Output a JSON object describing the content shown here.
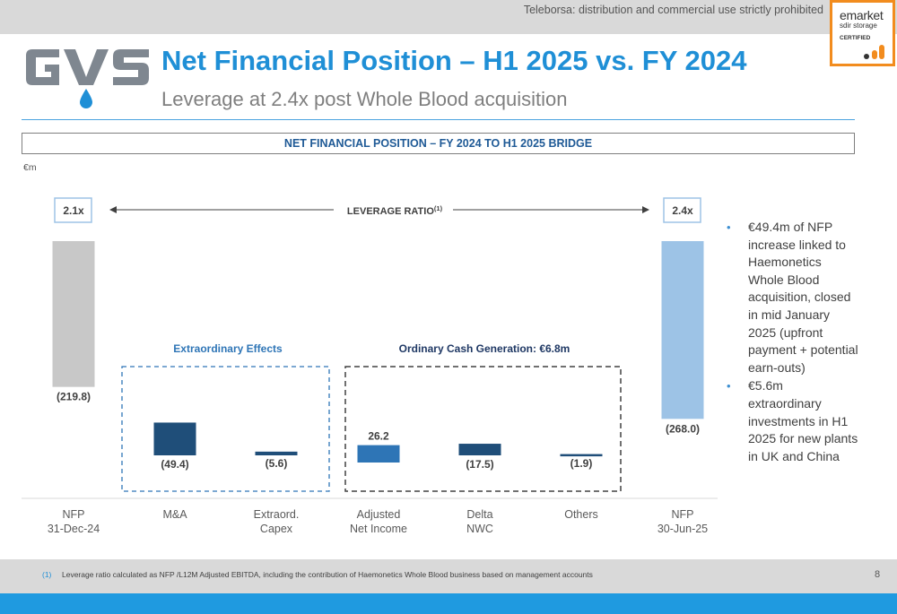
{
  "header": {
    "notice": "Teleborsa: distribution and commercial use strictly prohibited",
    "badge": {
      "line1": "emarket",
      "line2": "sdir storage",
      "line3": "CERTIFIED"
    },
    "logo_text": "GVS",
    "title": "Net Financial Position – H1 2025 vs. FY 2024",
    "subtitle": "Leverage at 2.4x post Whole Blood acquisition"
  },
  "bridge_title": "NET FINANCIAL POSITION –  FY 2024 TO H1 2025 BRIDGE",
  "unit": "€m",
  "chart_data": {
    "type": "bar",
    "subtype": "waterfall",
    "categories": [
      "NFP\n31-Dec-24",
      "M&A",
      "Extraord.\nCapex",
      "Adjusted\nNet Income",
      "Delta\nNWC",
      "Others",
      "NFP\n30-Jun-25"
    ],
    "values": [
      -219.8,
      -49.4,
      -5.6,
      26.2,
      -17.5,
      -1.9,
      -268.0
    ],
    "data_labels": [
      "(219.8)",
      "(49.4)",
      "(5.6)",
      "26.2",
      "(17.5)",
      "(1.9)",
      "(268.0)"
    ],
    "kinds": [
      "total",
      "delta",
      "delta",
      "delta",
      "delta",
      "delta",
      "total"
    ],
    "colors": [
      "#c8c8c8",
      "#1f4e79",
      "#1f4e79",
      "#2e75b6",
      "#1f4e79",
      "#1f4e79",
      "#9dc3e6"
    ],
    "leverage": {
      "start": "2.1x",
      "end": "2.4x",
      "label": "LEVERAGE RATIO",
      "footnote_marker": "(1)"
    },
    "groups": [
      {
        "label": "Extraordinary Effects",
        "color": "#2e75b6"
      },
      {
        "label": "Ordinary Cash Generation: €6.8m",
        "color": "#1f3864"
      }
    ]
  },
  "bullets": [
    "€49.4m of NFP increase linked to Haemonetics Whole Blood acquisition, closed in mid January 2025 (upfront payment + potential earn-outs)",
    "€5.6m extraordinary investments in H1 2025 for new plants in UK and China"
  ],
  "footer": {
    "note_number": "(1)",
    "note": "Leverage ratio calculated as NFP /L12M Adjusted EBITDA, including the contribution of Haemonetics Whole Blood business based on management accounts",
    "page": "8"
  },
  "colors": {
    "accent": "#1f8fd6",
    "bottom_bar": "#1f9ae0",
    "badge_border": "#f28c1e",
    "logo": "#7f8790",
    "drop": "#1f8fd6"
  }
}
